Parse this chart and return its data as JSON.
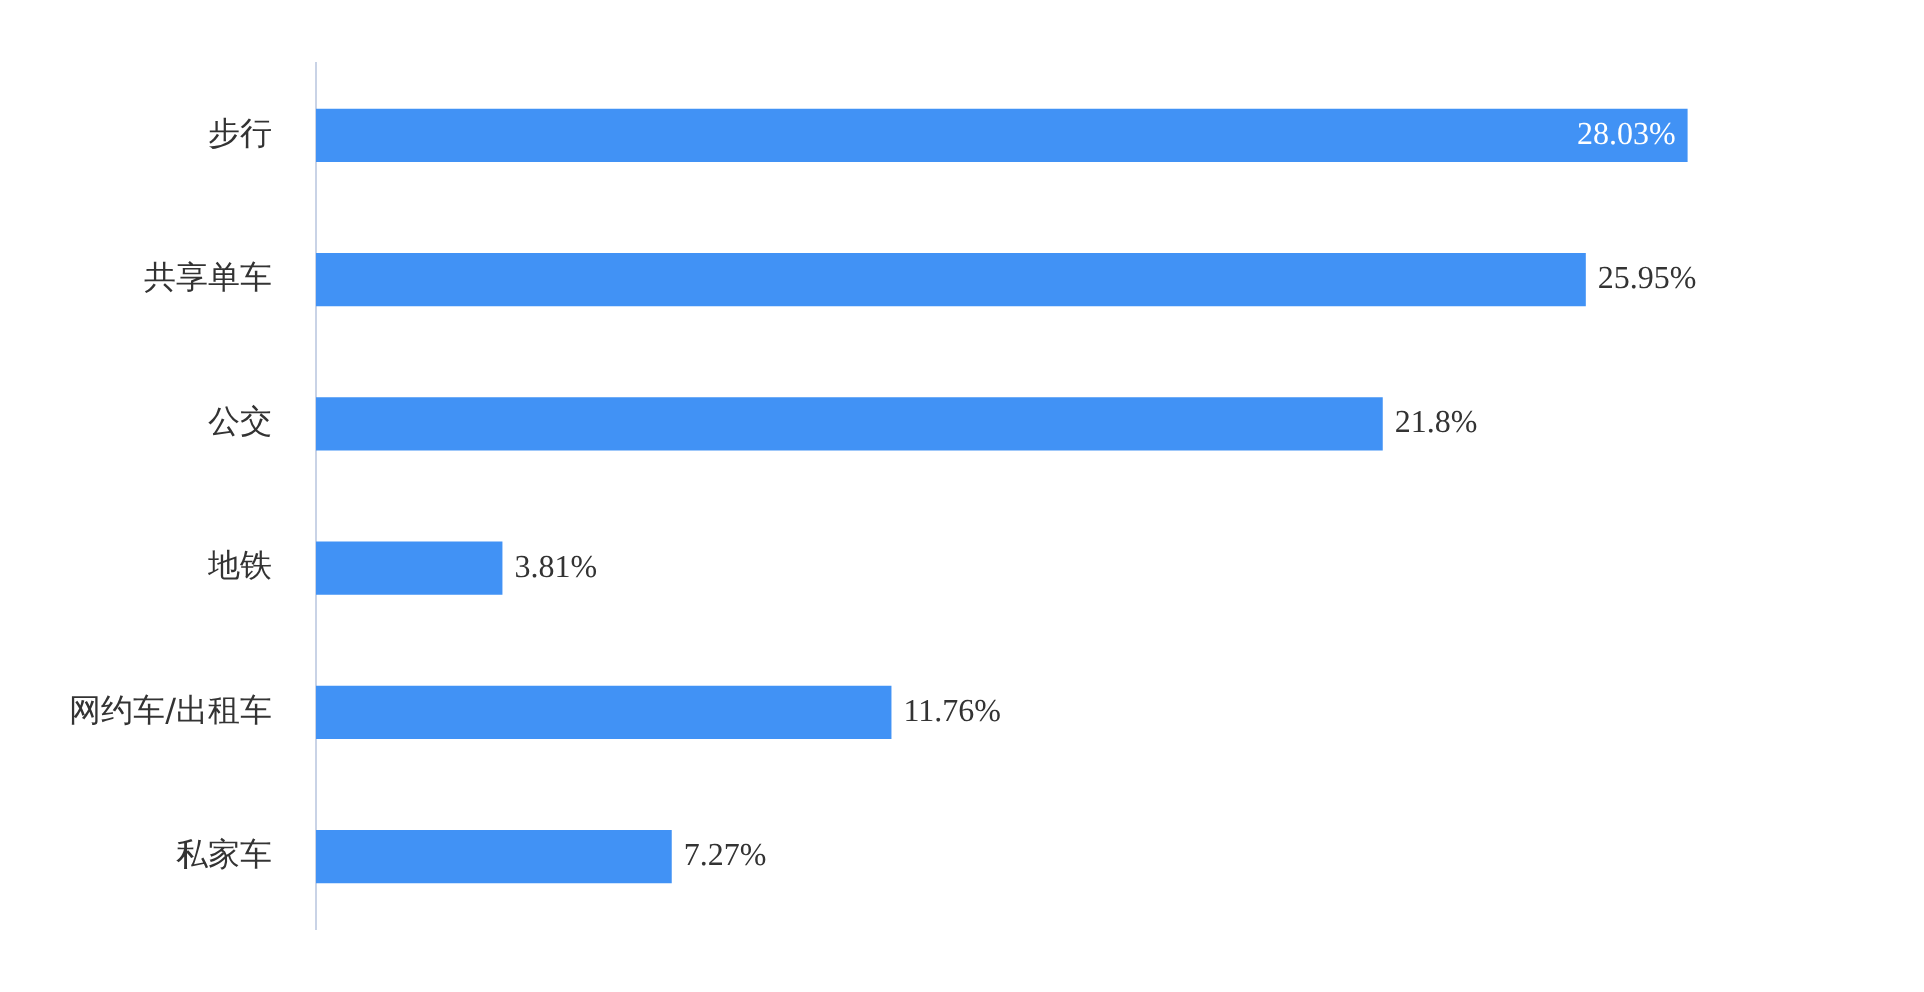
{
  "chart_data": {
    "type": "bar",
    "orientation": "horizontal",
    "categories": [
      "步行",
      "共享单车",
      "公交",
      "地铁",
      "网约车/出租车",
      "私家车"
    ],
    "values": [
      28.03,
      25.95,
      21.8,
      3.81,
      11.76,
      7.27
    ],
    "color": "#4192f5",
    "value_labels": [
      "28.03%",
      "25.95%",
      "21.8%",
      "3.81%",
      "11.76%",
      "7.27%"
    ],
    "legend": false
  }
}
